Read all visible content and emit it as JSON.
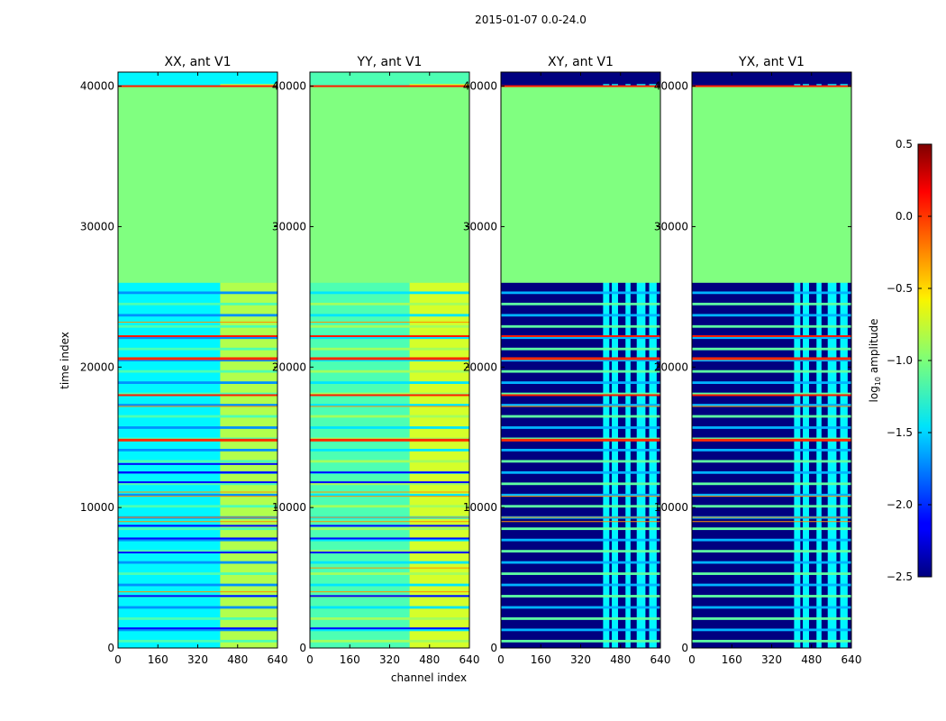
{
  "chart_data": {
    "type": "heatmap",
    "title": "2015-01-07 0.0-24.0",
    "xlabel": "channel index",
    "ylabel": "time index",
    "xlim": [
      0,
      640
    ],
    "ylim": [
      0,
      41000
    ],
    "x_ticks": [
      "0",
      "160",
      "320",
      "480",
      "640"
    ],
    "y_ticks": [
      "0",
      "10000",
      "20000",
      "30000",
      "40000"
    ],
    "colorbar": {
      "label": "log10 amplitude",
      "label_main": "log",
      "label_sub": "10",
      "label_rest": " amplitude",
      "range": [
        -2.5,
        0.5
      ],
      "ticks": [
        "0.5",
        "0.0",
        "−0.5",
        "−1.0",
        "−1.5",
        "−2.0",
        "−2.5"
      ],
      "colormap": "jet"
    },
    "panels": [
      {
        "title": "XX, ant V1",
        "flagged_block": [
          26000,
          40000
        ],
        "flag_value": -1.0,
        "background_value": -1.4,
        "bright_columns": [
          [
            410,
            640
          ]
        ],
        "bright_value": -0.85,
        "strong_rows": [
          14800,
          20600
        ],
        "orange_rows": [
          18000,
          22200,
          40000
        ],
        "thin_rows": [
          23200,
          17200,
          9000,
          9300,
          10800,
          11100,
          4000
        ],
        "dark_rows": [
          1400,
          3700,
          6800,
          7800,
          8700,
          11800,
          12500,
          13100
        ]
      },
      {
        "title": "YY, ant V1",
        "flagged_block": [
          26000,
          40000
        ],
        "flag_value": -1.0,
        "background_value": -1.15,
        "bright_columns": [
          [
            400,
            640
          ]
        ],
        "bright_value": -0.75,
        "strong_rows": [
          14800,
          20600
        ],
        "orange_rows": [
          18000,
          22200,
          40000
        ],
        "thin_rows": [
          23200,
          17200,
          9000,
          9300,
          10800,
          11100,
          4000,
          5700
        ],
        "dark_rows": [
          1400,
          3700,
          6800,
          7800,
          8700,
          11800,
          12500
        ]
      },
      {
        "title": "XY, ant V1",
        "flagged_block": [
          26000,
          40000
        ],
        "flag_value": -1.0,
        "background_value": -2.5,
        "bright_columns": [
          [
            410,
            435
          ],
          [
            445,
            470
          ],
          [
            500,
            520
          ],
          [
            545,
            580
          ],
          [
            595,
            625
          ]
        ],
        "bright_value": -1.4,
        "strong_rows": [
          14800,
          20600
        ],
        "orange_rows": [
          18000,
          22200,
          40000
        ],
        "thin_rows": [
          17200,
          9000,
          9300,
          10800
        ],
        "dark_rows": []
      },
      {
        "title": "YX, ant V1",
        "flagged_block": [
          26000,
          40000
        ],
        "flag_value": -1.0,
        "background_value": -2.5,
        "bright_columns": [
          [
            410,
            435
          ],
          [
            445,
            470
          ],
          [
            500,
            520
          ],
          [
            545,
            580
          ],
          [
            595,
            625
          ]
        ],
        "bright_value": -1.4,
        "strong_rows": [
          14800,
          20600
        ],
        "orange_rows": [
          18000,
          22200,
          40000
        ],
        "thin_rows": [
          17200,
          9000,
          9300,
          10800
        ],
        "dark_rows": []
      }
    ]
  }
}
